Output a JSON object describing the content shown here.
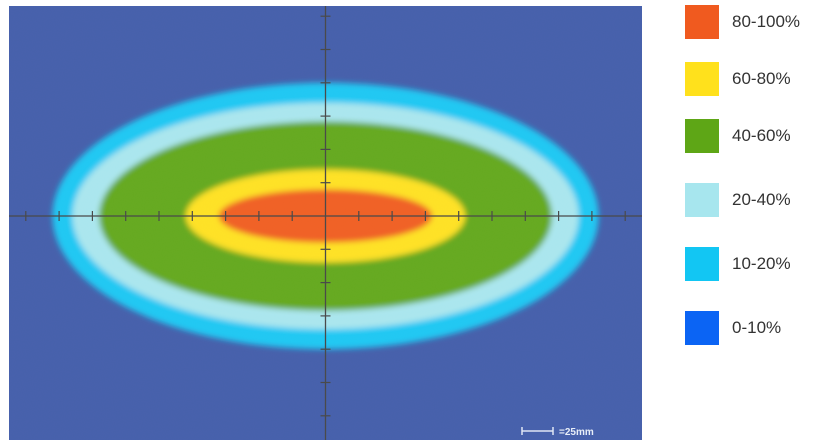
{
  "chart_data": {
    "type": "heatmap",
    "title": "",
    "xlabel": "",
    "ylabel": "",
    "grid": false,
    "legend_position": "right",
    "background_color": "#3e59a8",
    "scale_bar_label": "=25mm",
    "bins": [
      {
        "label": "80-100%",
        "min": 80,
        "max": 100,
        "color": "#f05a1f"
      },
      {
        "label": "60-80%",
        "min": 60,
        "max": 80,
        "color": "#ffe11c"
      },
      {
        "label": "40-60%",
        "min": 40,
        "max": 60,
        "color": "#5ea616"
      },
      {
        "label": "20-40%",
        "min": 20,
        "max": 40,
        "color": "#a7e6ee"
      },
      {
        "label": "10-20%",
        "min": 10,
        "max": 20,
        "color": "#12c6f3"
      },
      {
        "label": "0-10%",
        "min": 0,
        "max": 10,
        "color": "#0b64f4"
      }
    ],
    "distribution": {
      "shape": "elliptical",
      "center_mm": [
        0,
        0
      ],
      "zone_extents_mm": [
        {
          "band": "80-100%",
          "half_width": 80,
          "half_height": 20
        },
        {
          "band": "60-80%",
          "half_width": 105,
          "half_height": 35
        },
        {
          "band": "40-60%",
          "half_width": 170,
          "half_height": 71
        },
        {
          "band": "20-40%",
          "half_width": 190,
          "half_height": 85
        },
        {
          "band": "10-20%",
          "half_width": 205,
          "half_height": 100
        }
      ]
    }
  }
}
